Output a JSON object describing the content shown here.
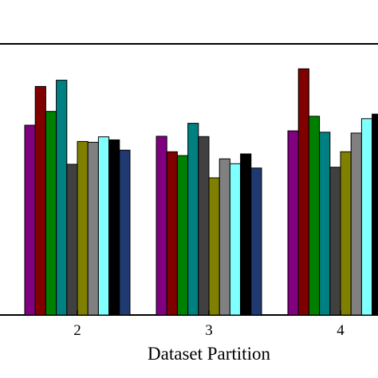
{
  "chart_data": {
    "type": "bar",
    "title": "",
    "xlabel": "Dataset Partition",
    "ylabel": "",
    "categories": [
      "2",
      "3",
      "4"
    ],
    "ylim": [
      0,
      100
    ],
    "grid": false,
    "legend": "none",
    "series": [
      {
        "color": "#800080",
        "values": [
          70.0,
          65.9,
          67.9
        ]
      },
      {
        "color": "#800000",
        "values": [
          84.3,
          60.2,
          90.8
        ]
      },
      {
        "color": "#008000",
        "values": [
          75.1,
          58.8,
          73.3
        ]
      },
      {
        "color": "#008080",
        "values": [
          86.6,
          70.7,
          67.4
        ]
      },
      {
        "color": "#404040",
        "values": [
          55.6,
          65.8,
          54.5
        ]
      },
      {
        "color": "#808000",
        "values": [
          64.0,
          50.6,
          60.2
        ]
      },
      {
        "color": "#808080",
        "values": [
          63.7,
          57.6,
          67.1
        ]
      },
      {
        "color": "#80ffff",
        "values": [
          65.7,
          55.8,
          72.4
        ]
      },
      {
        "color": "#000000",
        "values": [
          64.6,
          59.4,
          74.1
        ]
      },
      {
        "color": "#1f3a70",
        "values": [
          60.8,
          54.2,
          0
        ]
      }
    ]
  },
  "x_axis_label": "Dataset Partition",
  "tick_labels": [
    "2",
    "3",
    "4"
  ]
}
